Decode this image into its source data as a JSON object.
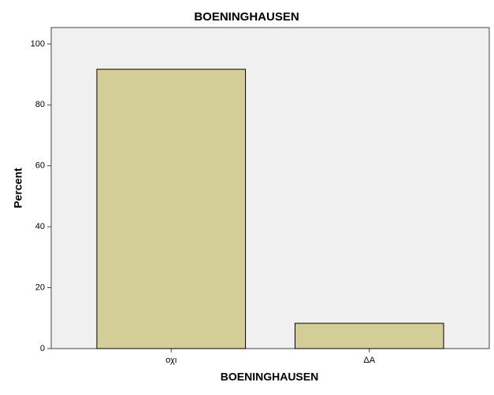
{
  "chart_data": {
    "type": "bar",
    "title": "BOENINGHAUSEN",
    "x_label": "BOENINGHAUSEN",
    "y_label": "Percent",
    "categories": [
      "οχι",
      "ΔA"
    ],
    "values": [
      91.7,
      8.3
    ],
    "color": "#d3ce97",
    "ylim": [
      0,
      105.4
    ],
    "yticks": [
      0,
      20,
      40,
      60,
      80,
      100
    ],
    "grid": false
  }
}
